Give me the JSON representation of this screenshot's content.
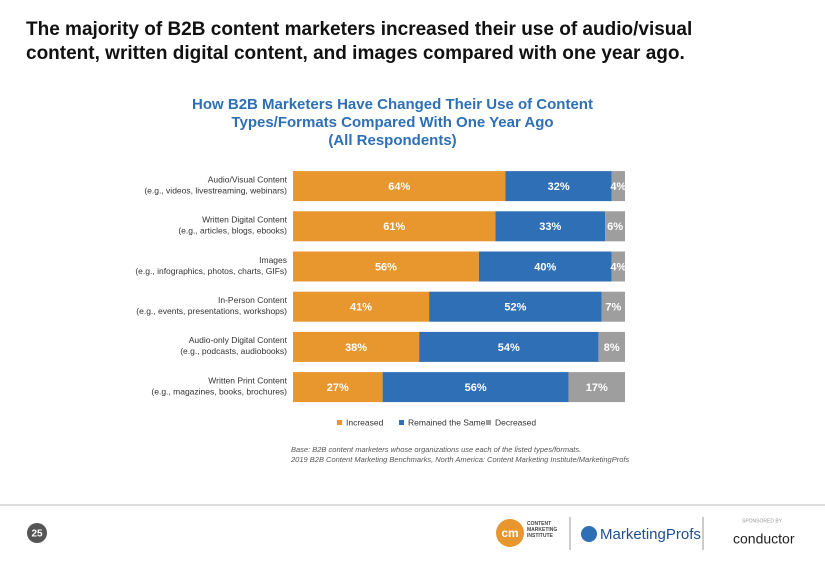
{
  "headline": "The majority of B2B content marketers increased their use of audio/visual content, written digital content, and images compared with one year ago.",
  "chart_data": {
    "type": "stacked-bar-horizontal",
    "title": "How B2B Marketers Have Changed Their Use of Content Types/Formats Compared With One Year Ago",
    "subtitle": "(All Respondents)",
    "categories": [
      "Audio/Visual Content",
      "Written Digital Content",
      "Images",
      "In-Person Content",
      "Audio-only Digital Content",
      "Written Print Content"
    ],
    "category_details": [
      "(e.g., videos, livestreaming, webinars)",
      "(e.g., articles, blogs, ebooks)",
      "(e.g., infographics, photos, charts, GIFs)",
      "(e.g., events, presentations, workshops)",
      "(e.g., podcasts, audiobooks)",
      "(e.g., magazines, books, brochures)"
    ],
    "series": [
      {
        "name": "Increased",
        "color": "#e8962e",
        "values": [
          64,
          61,
          56,
          41,
          38,
          27
        ],
        "value_labels": [
          "64%",
          "61%",
          "56%",
          "41%",
          "38%",
          "27%"
        ]
      },
      {
        "name": "Remained the Same",
        "color": "#2e6fb5",
        "values": [
          32,
          33,
          40,
          52,
          54,
          56
        ],
        "value_labels": [
          "32%",
          "33%",
          "40%",
          "52%",
          "54%",
          "56%"
        ]
      },
      {
        "name": "Decreased",
        "color": "#9e9e9e",
        "values": [
          4,
          6,
          4,
          7,
          8,
          17
        ],
        "value_labels": [
          "4%",
          "6%",
          "4%",
          "7%",
          "8%",
          "17%"
        ]
      }
    ],
    "xlim": [
      0,
      100
    ],
    "legend": "bottom",
    "notes": [
      "Base: B2B content marketers whose organizations use each of the listed types/formats.",
      "2019 B2B Content Marketing Benchmarks, North America: Content Marketing Institute/MarketingProfs"
    ]
  },
  "footer": {
    "page_number": "25",
    "logo_cmi_initials": "cm",
    "logo_cmi": "CONTENT MARKETING INSTITUTE",
    "logo_mp": "MarketingProfs",
    "sponsored": "SPONSORED BY",
    "logo_conductor": "conductor"
  }
}
